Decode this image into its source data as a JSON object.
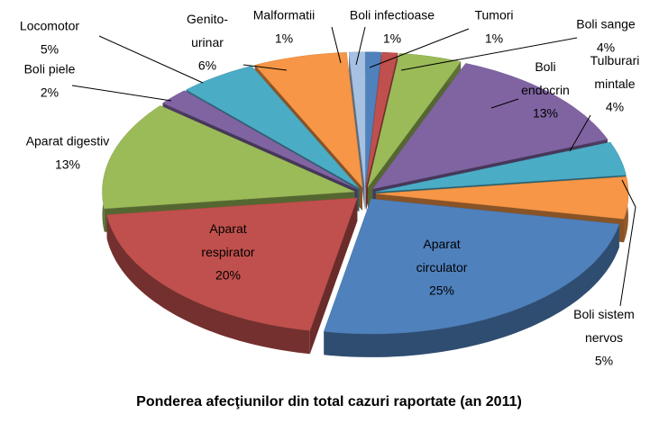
{
  "chart_data": {
    "type": "pie3d",
    "title": "Ponderea afecţiunilor din total cazuri raportate (an 2011)",
    "categories": [
      "Boli infectioase",
      "Tumori",
      "Boli sange",
      "Boli\nendocrin",
      "Tulburari\nmintale",
      "Boli sistem\nnervos",
      "Aparat\ncirculator",
      "Aparat\nrespirator",
      "Aparat digestiv",
      "Boli piele",
      "Locomotor",
      "Genito-\nurinar",
      "Malformatii"
    ],
    "values": [
      1,
      1,
      4,
      13,
      4,
      5,
      25,
      20,
      13,
      2,
      5,
      6,
      1
    ],
    "value_labels": [
      "1%",
      "1%",
      "4%",
      "13%",
      "4%",
      "5%",
      "25%",
      "20%",
      "13%",
      "2%",
      "5%",
      "6%",
      "1%"
    ],
    "colors": [
      "#4f81bd",
      "#c0504d",
      "#9bbb59",
      "#8064a2",
      "#4bacc6",
      "#f79646",
      "#4f81bd",
      "#c0504d",
      "#9bbb59",
      "#8064a2",
      "#4bacc6",
      "#f79646",
      "#a7c1e2"
    ]
  }
}
